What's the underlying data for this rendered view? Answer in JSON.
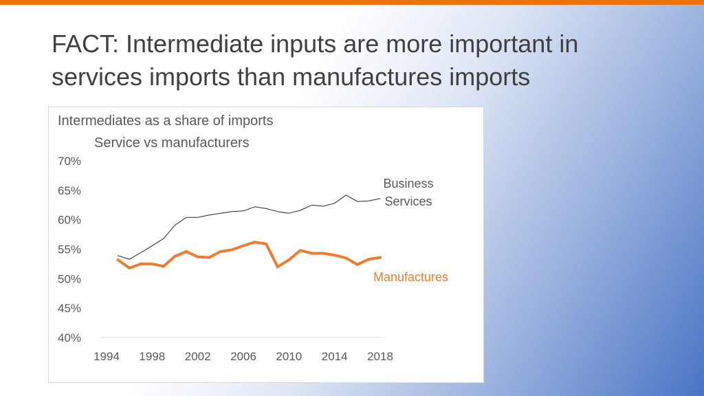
{
  "slide": {
    "title": "FACT: Intermediate inputs are more important in services imports than manufactures imports",
    "accent_color": "#e8740f"
  },
  "chart_data": {
    "type": "line",
    "title": "Intermediates as a share of imports",
    "subtitle": "Service vs manufacturers",
    "ylim": [
      40,
      70
    ],
    "yticks": [
      40,
      45,
      50,
      55,
      60,
      65,
      70
    ],
    "ytick_labels": [
      "40%",
      "45%",
      "50%",
      "55%",
      "60%",
      "65%",
      "70%"
    ],
    "xlim": [
      1994,
      2018
    ],
    "xticks": [
      1994,
      1998,
      2002,
      2006,
      2010,
      2014,
      2018
    ],
    "xtick_labels": [
      "1994",
      "1998",
      "2002",
      "2006",
      "2010",
      "2014",
      "2018"
    ],
    "x": [
      1995,
      1996,
      1997,
      1998,
      1999,
      2000,
      2001,
      2002,
      2003,
      2004,
      2005,
      2006,
      2007,
      2008,
      2009,
      2010,
      2011,
      2012,
      2013,
      2014,
      2015,
      2016,
      2017,
      2018
    ],
    "series": [
      {
        "name": "Business Services",
        "label_lines": [
          "Business",
          "Services"
        ],
        "color": "#262626",
        "width": "thin",
        "values": [
          53.9,
          53.3,
          54.4,
          55.6,
          56.8,
          59.1,
          60.4,
          60.4,
          60.8,
          61.1,
          61.4,
          61.5,
          62.2,
          61.9,
          61.4,
          61.1,
          61.6,
          62.5,
          62.3,
          62.8,
          64.2,
          63.1,
          63.2,
          63.6
        ]
      },
      {
        "name": "Manufactures",
        "label_lines": [
          "Manufactures"
        ],
        "color": "#ed7d31",
        "width": "thick",
        "values": [
          53.2,
          51.8,
          52.5,
          52.5,
          52.1,
          53.8,
          54.6,
          53.7,
          53.6,
          54.6,
          54.9,
          55.6,
          56.2,
          55.9,
          52.0,
          53.2,
          54.8,
          54.3,
          54.3,
          54.0,
          53.5,
          52.4,
          53.3,
          53.6
        ]
      }
    ],
    "grid": false,
    "legend": "inline labels at right end of lines"
  }
}
